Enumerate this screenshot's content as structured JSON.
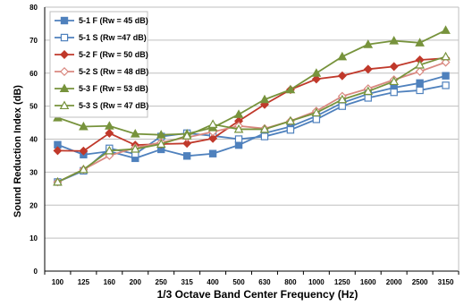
{
  "chart_data": {
    "type": "line",
    "title": "",
    "xlabel": "1/3 Octave Band Center Frequency (Hz)",
    "ylabel": "Sound Reduction Index (dB)",
    "ylim": [
      0,
      80
    ],
    "yticks": [
      0,
      10,
      20,
      30,
      40,
      50,
      60,
      70,
      80
    ],
    "grid": true,
    "legend_position": "top-left",
    "categories": [
      "100",
      "125",
      "160",
      "200",
      "250",
      "315",
      "400",
      "500",
      "630",
      "800",
      "1000",
      "1250",
      "1600",
      "2000",
      "2500",
      "3150"
    ],
    "series": [
      {
        "name": "5-1 F (Rw = 45 dB)",
        "color": "#4f81bd",
        "marker": "square",
        "filled": true,
        "values": [
          38.3,
          35.3,
          36.3,
          34.2,
          36.9,
          34.9,
          35.6,
          38.2,
          41.8,
          43.8,
          47.0,
          51.0,
          53.7,
          55.6,
          57.0,
          59.2
        ]
      },
      {
        "name": "5-1 S (Rw =47 dB)",
        "color": "#4f81bd",
        "marker": "square",
        "filled": false,
        "values": [
          27.0,
          30.4,
          37.2,
          35.5,
          40.8,
          41.8,
          41.0,
          40.0,
          40.8,
          42.8,
          46.0,
          50.0,
          52.5,
          54.2,
          54.8,
          56.3
        ]
      },
      {
        "name": "5-2 F (Rw = 50 dB)",
        "color": "#c0392b",
        "marker": "diamond",
        "filled": true,
        "values": [
          36.5,
          36.4,
          41.8,
          38.2,
          38.5,
          38.7,
          40.2,
          45.5,
          50.5,
          55.0,
          58.2,
          59.2,
          61.2,
          62.0,
          64.0,
          64.5
        ]
      },
      {
        "name": "5-2 S (Rw = 48 dB)",
        "color": "#d98880",
        "marker": "diamond",
        "filled": false,
        "values": [
          27.0,
          30.8,
          35.0,
          37.4,
          39.0,
          40.5,
          42.2,
          44.0,
          43.2,
          45.5,
          48.5,
          53.0,
          55.3,
          58.0,
          60.5,
          63.3
        ]
      },
      {
        "name": "5-3 F (Rw = 53 dB)",
        "color": "#77933c",
        "marker": "triangle",
        "filled": true,
        "values": [
          46.5,
          43.8,
          44.0,
          41.6,
          41.3,
          41.6,
          43.5,
          47.5,
          52.0,
          55.0,
          60.0,
          65.0,
          68.7,
          69.8,
          69.2,
          73.0
        ]
      },
      {
        "name": "5-3 S (Rw = 47 dB)",
        "color": "#77933c",
        "marker": "triangle",
        "filled": false,
        "values": [
          27.0,
          30.8,
          36.5,
          37.0,
          38.5,
          41.0,
          44.5,
          43.0,
          43.0,
          45.5,
          48.0,
          52.0,
          54.5,
          57.5,
          62.5,
          65.0
        ]
      }
    ]
  }
}
